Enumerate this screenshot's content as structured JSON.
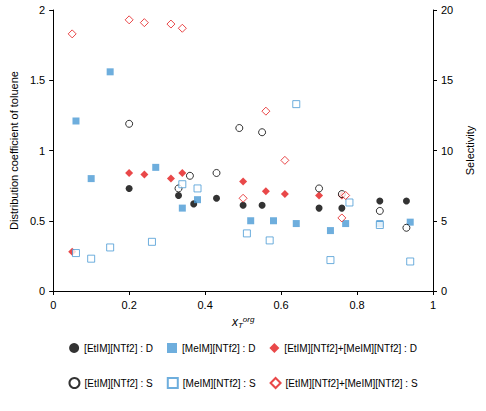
{
  "chart_data": {
    "type": "scatter",
    "xlabel": {
      "text": "x",
      "sub": "T",
      "sup": "org"
    },
    "ylabel": "Distribution coefficient of toluene",
    "y2label": "Selectivity",
    "xlim": [
      0,
      1
    ],
    "xticks": [
      0,
      0.2,
      0.4,
      0.6,
      0.8,
      1
    ],
    "ylim": [
      0,
      2
    ],
    "yticks": [
      0,
      0.5,
      1,
      1.5,
      2
    ],
    "y2lim": [
      0,
      20
    ],
    "y2ticks": [
      0,
      5,
      10,
      15,
      20
    ],
    "grid": false,
    "legend": "bottom",
    "series": [
      {
        "name": "[EtIM][NTf2] : D",
        "color": "#000000",
        "marker": "circle",
        "axis": "y",
        "x": [
          0.2,
          0.33,
          0.37,
          0.43,
          0.5,
          0.55,
          0.7,
          0.76,
          0.86,
          0.93
        ],
        "values": [
          0.73,
          0.68,
          0.62,
          0.66,
          0.61,
          0.61,
          0.59,
          0.59,
          0.64,
          0.64
        ]
      },
      {
        "name": "[MeIM][NTf2] : D",
        "color": "#4a9ad4",
        "marker": "square",
        "axis": "y",
        "x": [
          0.06,
          0.1,
          0.15,
          0.27,
          0.34,
          0.38,
          0.52,
          0.58,
          0.64,
          0.73,
          0.77,
          0.86,
          0.94
        ],
        "values": [
          1.21,
          0.8,
          1.56,
          0.88,
          0.59,
          0.65,
          0.5,
          0.5,
          0.48,
          0.43,
          0.48,
          0.48,
          0.49
        ]
      },
      {
        "name": "[EtIM][NTf2]+[MeIM][NTf2] : D",
        "color": "#e31a1c",
        "marker": "diamond",
        "axis": "y",
        "x": [
          0.05,
          0.2,
          0.24,
          0.31,
          0.34,
          0.5,
          0.56,
          0.61,
          0.7,
          0.76
        ],
        "values": [
          0.28,
          0.84,
          0.83,
          0.8,
          0.84,
          0.78,
          0.71,
          0.69,
          0.68,
          0.68
        ]
      },
      {
        "name": "[EtIM][NTf2] : S",
        "color": "#000000",
        "marker": "open circle",
        "axis": "y2",
        "x": [
          0.2,
          0.33,
          0.36,
          0.43,
          0.49,
          0.55,
          0.7,
          0.76,
          0.86,
          0.93
        ],
        "values": [
          11.9,
          7.3,
          8.2,
          8.4,
          11.6,
          11.3,
          7.3,
          6.9,
          5.7,
          4.5
        ]
      },
      {
        "name": "[MeIM][NTf2] : S",
        "color": "#4a9ad4",
        "marker": "open square",
        "axis": "y2",
        "x": [
          0.06,
          0.1,
          0.15,
          0.26,
          0.34,
          0.38,
          0.51,
          0.57,
          0.64,
          0.73,
          0.78,
          0.86,
          0.94
        ],
        "values": [
          2.7,
          2.3,
          3.1,
          3.5,
          7.6,
          7.3,
          4.1,
          3.6,
          13.3,
          2.2,
          6.3,
          4.7,
          2.1
        ]
      },
      {
        "name": "[EtIM][NTf2]+[MeIM][NTf2] : S",
        "color": "#e31a1c",
        "marker": "open diamond",
        "axis": "y2",
        "x": [
          0.05,
          0.2,
          0.24,
          0.31,
          0.34,
          0.5,
          0.56,
          0.61,
          0.76,
          0.77
        ],
        "values": [
          18.3,
          19.3,
          19.1,
          19.0,
          18.7,
          6.6,
          12.8,
          9.3,
          5.2,
          6.8
        ]
      }
    ]
  }
}
